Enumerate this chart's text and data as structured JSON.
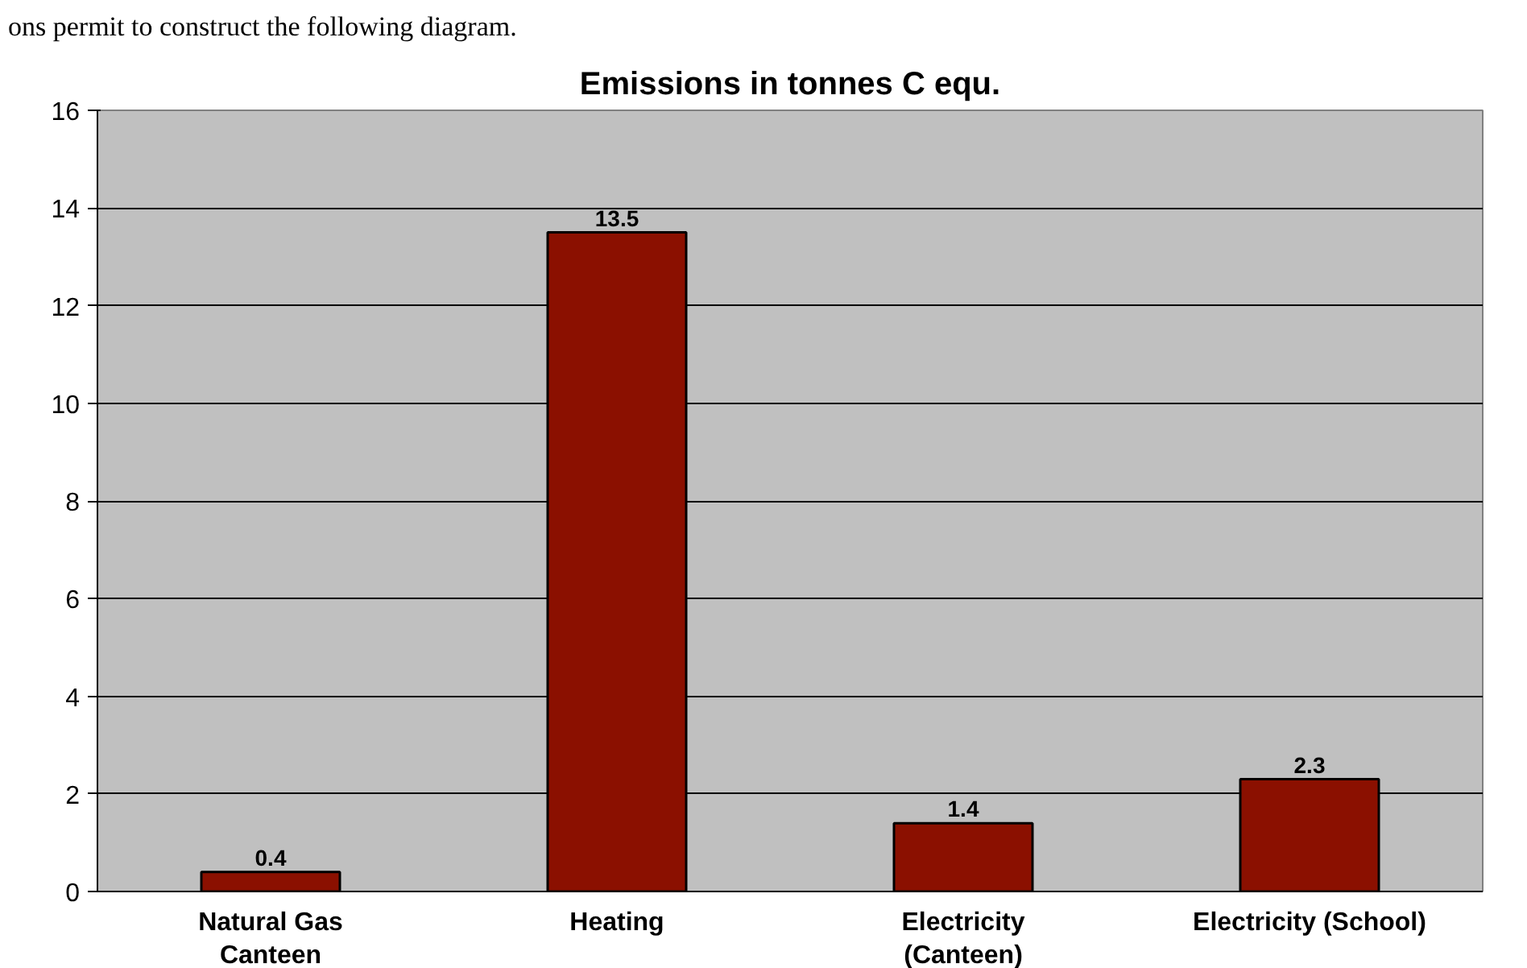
{
  "chart_data": {
    "type": "bar",
    "title": "Emissions in tonnes C equ.",
    "annotations": [
      "ons permit to construct the following diagram."
    ],
    "categories": [
      "Natural Gas\nCanteen",
      "Heating",
      "Electricity\n(Canteen)",
      "Electricity (School)"
    ],
    "values": [
      0.4,
      13.5,
      1.4,
      2.3
    ],
    "color": "#8b1000",
    "ylim": [
      0,
      16
    ],
    "yticks": [
      0,
      2,
      4,
      6,
      8,
      10,
      12,
      14,
      16
    ],
    "grid": "y",
    "data_labels": true
  }
}
